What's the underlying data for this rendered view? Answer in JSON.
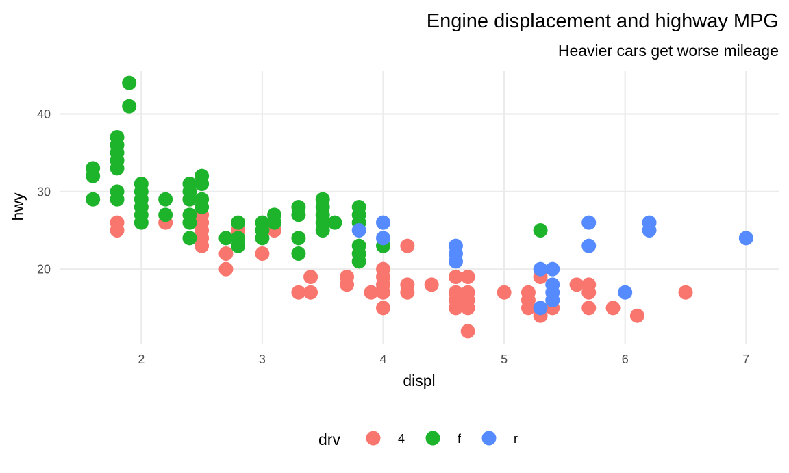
{
  "chart_data": {
    "type": "scatter",
    "title": "Engine displacement and highway MPG",
    "subtitle": "Heavier cars get worse mileage",
    "xlabel": "displ",
    "ylabel": "hwy",
    "xlim": [
      1.33,
      7.27
    ],
    "ylim": [
      10.4,
      45.6
    ],
    "x_ticks": [
      2,
      3,
      4,
      5,
      6,
      7
    ],
    "y_ticks": [
      20,
      30,
      40
    ],
    "grid": true,
    "legend": {
      "title": "drv",
      "position": "bottom",
      "entries": [
        {
          "key": "4",
          "label": "4",
          "color": "#F8766D"
        },
        {
          "key": "f",
          "label": "f",
          "color": "#1DB32B"
        },
        {
          "key": "r",
          "label": "r",
          "color": "#558BFF"
        }
      ]
    },
    "series": [
      {
        "name": "4",
        "color": "#F8766D",
        "points": [
          [
            1.8,
            26
          ],
          [
            1.8,
            25
          ],
          [
            2.0,
            28
          ],
          [
            2.2,
            26
          ],
          [
            2.4,
            29
          ],
          [
            2.5,
            27
          ],
          [
            2.5,
            26
          ],
          [
            2.5,
            25
          ],
          [
            2.5,
            24
          ],
          [
            2.5,
            23
          ],
          [
            2.7,
            22
          ],
          [
            2.7,
            20
          ],
          [
            2.8,
            25
          ],
          [
            2.8,
            24
          ],
          [
            3.0,
            22
          ],
          [
            3.1,
            25
          ],
          [
            3.3,
            17
          ],
          [
            3.4,
            19
          ],
          [
            3.4,
            17
          ],
          [
            3.7,
            19
          ],
          [
            3.7,
            18
          ],
          [
            3.9,
            17
          ],
          [
            4.0,
            20
          ],
          [
            4.0,
            19
          ],
          [
            4.0,
            18
          ],
          [
            4.0,
            17
          ],
          [
            4.0,
            15
          ],
          [
            4.2,
            23
          ],
          [
            4.2,
            18
          ],
          [
            4.2,
            17
          ],
          [
            4.4,
            18
          ],
          [
            4.6,
            19
          ],
          [
            4.6,
            17
          ],
          [
            4.6,
            16
          ],
          [
            4.6,
            15
          ],
          [
            4.7,
            19
          ],
          [
            4.7,
            17
          ],
          [
            4.7,
            16
          ],
          [
            4.7,
            15
          ],
          [
            4.7,
            12
          ],
          [
            5.0,
            17
          ],
          [
            5.2,
            17
          ],
          [
            5.2,
            16
          ],
          [
            5.2,
            15
          ],
          [
            5.3,
            19
          ],
          [
            5.3,
            14
          ],
          [
            5.4,
            15
          ],
          [
            5.6,
            18
          ],
          [
            5.7,
            18
          ],
          [
            5.7,
            17
          ],
          [
            5.7,
            15
          ],
          [
            5.9,
            15
          ],
          [
            6.1,
            14
          ],
          [
            6.5,
            17
          ]
        ]
      },
      {
        "name": "f",
        "color": "#1DB32B",
        "points": [
          [
            1.6,
            33
          ],
          [
            1.6,
            32
          ],
          [
            1.6,
            29
          ],
          [
            1.8,
            37
          ],
          [
            1.8,
            36
          ],
          [
            1.8,
            35
          ],
          [
            1.8,
            34
          ],
          [
            1.8,
            33
          ],
          [
            1.8,
            30
          ],
          [
            1.8,
            29
          ],
          [
            1.9,
            44
          ],
          [
            1.9,
            41
          ],
          [
            2.0,
            31
          ],
          [
            2.0,
            30
          ],
          [
            2.0,
            29
          ],
          [
            2.0,
            28
          ],
          [
            2.0,
            27
          ],
          [
            2.0,
            26
          ],
          [
            2.2,
            29
          ],
          [
            2.2,
            27
          ],
          [
            2.4,
            31
          ],
          [
            2.4,
            30
          ],
          [
            2.4,
            29
          ],
          [
            2.4,
            27
          ],
          [
            2.4,
            26
          ],
          [
            2.4,
            24
          ],
          [
            2.5,
            32
          ],
          [
            2.5,
            31
          ],
          [
            2.5,
            29
          ],
          [
            2.5,
            28
          ],
          [
            2.7,
            24
          ],
          [
            2.8,
            26
          ],
          [
            2.8,
            24
          ],
          [
            2.8,
            23
          ],
          [
            3.0,
            26
          ],
          [
            3.0,
            25
          ],
          [
            3.0,
            24
          ],
          [
            3.1,
            27
          ],
          [
            3.1,
            26
          ],
          [
            3.3,
            28
          ],
          [
            3.3,
            27
          ],
          [
            3.3,
            24
          ],
          [
            3.3,
            22
          ],
          [
            3.5,
            29
          ],
          [
            3.5,
            28
          ],
          [
            3.5,
            27
          ],
          [
            3.5,
            26
          ],
          [
            3.5,
            25
          ],
          [
            3.6,
            26
          ],
          [
            3.8,
            28
          ],
          [
            3.8,
            27
          ],
          [
            3.8,
            26
          ],
          [
            3.8,
            23
          ],
          [
            3.8,
            22
          ],
          [
            3.8,
            21
          ],
          [
            4.0,
            23
          ],
          [
            5.3,
            25
          ]
        ]
      },
      {
        "name": "r",
        "color": "#558BFF",
        "points": [
          [
            3.8,
            25
          ],
          [
            4.0,
            26
          ],
          [
            4.0,
            24
          ],
          [
            4.6,
            23
          ],
          [
            4.6,
            22
          ],
          [
            4.6,
            21
          ],
          [
            5.3,
            20
          ],
          [
            5.3,
            15
          ],
          [
            5.4,
            20
          ],
          [
            5.4,
            18
          ],
          [
            5.4,
            17
          ],
          [
            5.4,
            16
          ],
          [
            5.7,
            26
          ],
          [
            5.7,
            23
          ],
          [
            6.0,
            17
          ],
          [
            6.2,
            26
          ],
          [
            6.2,
            25
          ],
          [
            7.0,
            24
          ]
        ]
      }
    ]
  }
}
